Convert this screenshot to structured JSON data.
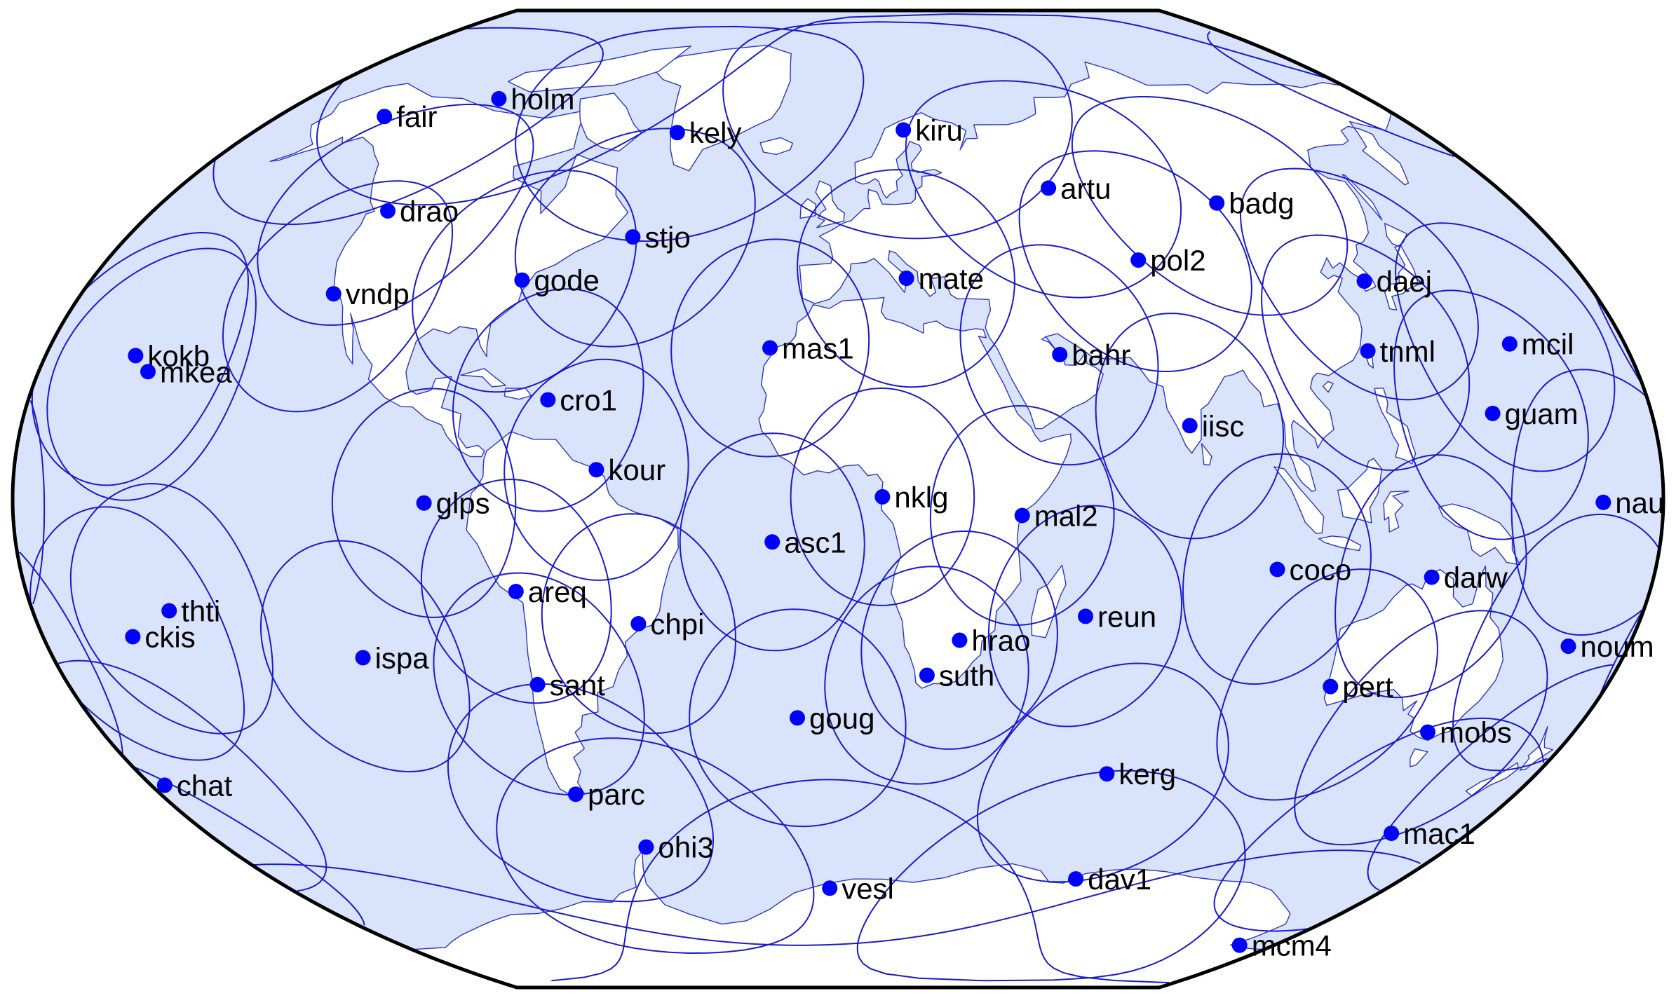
{
  "map": {
    "projection": "Winkel Tripel world map",
    "colors": {
      "ocean": "#d9e4fc",
      "land": "#ffffff",
      "coastline": "#2b35c8",
      "station": "#0000ff",
      "coverage_circle": "#1a1acc",
      "frame": "#000000"
    },
    "stations": [
      {
        "code": "holm",
        "lon": -117.8,
        "lat": 70.7
      },
      {
        "code": "fair",
        "lon": -147.5,
        "lat": 65.0
      },
      {
        "code": "kely",
        "lon": -50.9,
        "lat": 66.9
      },
      {
        "code": "kiru",
        "lon": 20.9,
        "lat": 67.9
      },
      {
        "code": "drao",
        "lon": -119.6,
        "lat": 49.3
      },
      {
        "code": "stjo",
        "lon": -52.7,
        "lat": 47.6
      },
      {
        "code": "artu",
        "lon": 58.6,
        "lat": 56.4
      },
      {
        "code": "badg",
        "lon": 102.2,
        "lat": 51.8
      },
      {
        "code": "pol2",
        "lon": 74.7,
        "lat": 42.7
      },
      {
        "code": "gode",
        "lon": -76.8,
        "lat": 39.0
      },
      {
        "code": "mate",
        "lon": 16.7,
        "lat": 40.6
      },
      {
        "code": "vndp",
        "lon": -120.6,
        "lat": 34.6
      },
      {
        "code": "daej",
        "lon": 127.4,
        "lat": 36.4
      },
      {
        "code": "kokb",
        "lon": -159.7,
        "lat": 22.1
      },
      {
        "code": "mkea",
        "lon": -155.5,
        "lat": 19.8
      },
      {
        "code": "mas1",
        "lon": -15.6,
        "lat": 27.8
      },
      {
        "code": "bahr",
        "lon": 50.6,
        "lat": 26.2
      },
      {
        "code": "tnml",
        "lon": 121.0,
        "lat": 24.8
      },
      {
        "code": "mcil",
        "lon": 153.9,
        "lat": 24.3
      },
      {
        "code": "cro1",
        "lon": -64.6,
        "lat": 17.8
      },
      {
        "code": "guam",
        "lon": 144.9,
        "lat": 13.6
      },
      {
        "code": "iisc",
        "lon": 77.6,
        "lat": 13.0
      },
      {
        "code": "kour",
        "lon": -52.8,
        "lat": 5.3
      },
      {
        "code": "glps",
        "lon": -90.3,
        "lat": -0.7
      },
      {
        "code": "nklg",
        "lon": 9.7,
        "lat": 0.4
      },
      {
        "code": "nau",
        "lon": 166.9,
        "lat": -0.5
      },
      {
        "code": "mal2",
        "lon": 40.2,
        "lat": -3.0
      },
      {
        "code": "asc1",
        "lon": -14.4,
        "lat": -7.9
      },
      {
        "code": "coco",
        "lon": 96.8,
        "lat": -12.2
      },
      {
        "code": "darw",
        "lon": 131.1,
        "lat": -12.8
      },
      {
        "code": "areq",
        "lon": -71.5,
        "lat": -16.5
      },
      {
        "code": "thti",
        "lon": -149.6,
        "lat": -17.6
      },
      {
        "code": "reun",
        "lon": 55.6,
        "lat": -21.2
      },
      {
        "code": "ckis",
        "lon": -159.8,
        "lat": -21.2
      },
      {
        "code": "chpi",
        "lon": -45.0,
        "lat": -22.7
      },
      {
        "code": "hrao",
        "lon": 27.7,
        "lat": -25.9
      },
      {
        "code": "noum",
        "lon": 166.4,
        "lat": -22.3
      },
      {
        "code": "ispa",
        "lon": -109.3,
        "lat": -27.1
      },
      {
        "code": "suth",
        "lon": 20.8,
        "lat": -32.4
      },
      {
        "code": "pert",
        "lon": 115.9,
        "lat": -31.8
      },
      {
        "code": "sant",
        "lon": -70.7,
        "lat": -33.2
      },
      {
        "code": "goug",
        "lon": -9.9,
        "lat": -40.3
      },
      {
        "code": "mobs",
        "lon": 144.9,
        "lat": -37.8
      },
      {
        "code": "chat",
        "lon": -176.6,
        "lat": -43.9
      },
      {
        "code": "kerg",
        "lon": 70.3,
        "lat": -49.4
      },
      {
        "code": "parc",
        "lon": -70.9,
        "lat": -53.1
      },
      {
        "code": "mac1",
        "lon": 158.9,
        "lat": -54.5
      },
      {
        "code": "ohi3",
        "lon": -57.9,
        "lat": -63.3
      },
      {
        "code": "dav1",
        "lon": 78.0,
        "lat": -68.6
      },
      {
        "code": "vesl",
        "lon": -2.8,
        "lat": -71.7
      },
      {
        "code": "mcm4",
        "lon": 166.7,
        "lat": -77.8
      }
    ],
    "coverage_radius_deg": 20
  }
}
